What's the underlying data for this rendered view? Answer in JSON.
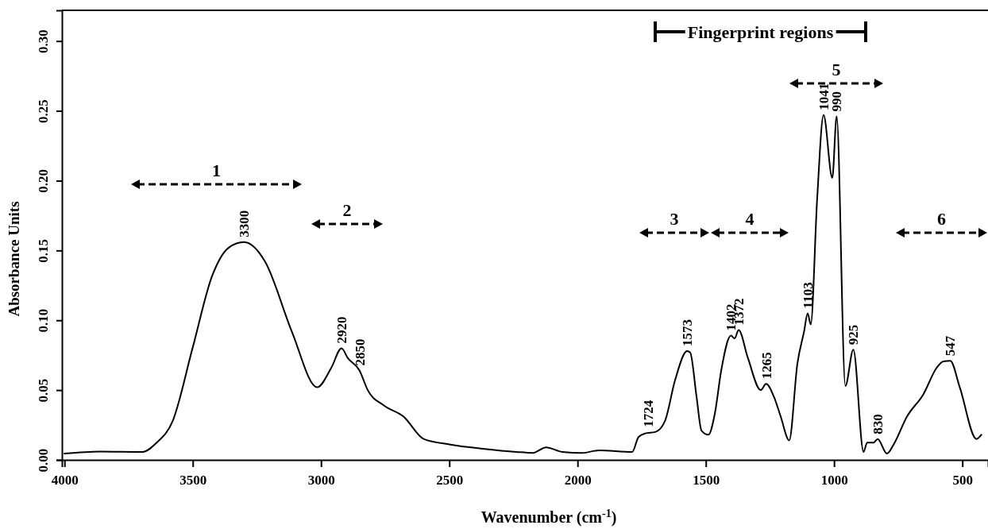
{
  "chart_data": {
    "type": "line",
    "xlabel": "Wavenumber (cm$^{-1}$)",
    "ylabel": "Absorbance Units",
    "xlim": [
      4010,
      400
    ],
    "ylim": [
      0,
      0.322
    ],
    "xticks": [
      4000,
      3500,
      3000,
      2500,
      2000,
      1500,
      1000,
      500
    ],
    "yticks": [
      {
        "value": 0,
        "label": "0.00"
      },
      {
        "value": 0.05,
        "label": "0.05"
      },
      {
        "value": 0.1,
        "label": "0.10"
      },
      {
        "value": 0.15,
        "label": "0.15"
      },
      {
        "value": 0.2,
        "label": "0.20"
      },
      {
        "value": 0.25,
        "label": "0.25"
      },
      {
        "value": 0.3,
        "label": "0.30"
      }
    ],
    "grid": false,
    "marker": "none",
    "line_style": "solid",
    "series": [
      {
        "color": "#000000",
        "x": [
          4000,
          3862,
          3695,
          3643,
          3578,
          3501,
          3424,
          3360,
          3300,
          3218,
          3114,
          3015,
          2960,
          2920,
          2896,
          2850,
          2818,
          2755,
          2678,
          2600,
          2496,
          2369,
          2239,
          2174,
          2123,
          2059,
          1982,
          1917,
          1787,
          1762,
          1736,
          1697,
          1659,
          1620,
          1573,
          1561,
          1536,
          1517,
          1490,
          1465,
          1440,
          1402,
          1388,
          1372,
          1336,
          1286,
          1265,
          1234,
          1208,
          1175,
          1143,
          1117,
          1103,
          1091,
          1066,
          1041,
          1007,
          990,
          956,
          925,
          885,
          871,
          846,
          830,
          794,
          768,
          716,
          652,
          600,
          574,
          547,
          510,
          445,
          426
        ],
        "values": [
          0.0045,
          0.006,
          0.0057,
          0.012,
          0.028,
          0.08,
          0.132,
          0.152,
          0.156,
          0.142,
          0.092,
          0.052,
          0.066,
          0.08,
          0.073,
          0.064,
          0.05,
          0.039,
          0.031,
          0.015,
          0.011,
          0.008,
          0.0057,
          0.005,
          0.009,
          0.0057,
          0.005,
          0.0068,
          0.0057,
          0.0165,
          0.019,
          0.02,
          0.028,
          0.057,
          0.078,
          0.077,
          0.045,
          0.021,
          0.018,
          0.033,
          0.064,
          0.089,
          0.087,
          0.093,
          0.073,
          0.05,
          0.0545,
          0.045,
          0.031,
          0.014,
          0.069,
          0.092,
          0.105,
          0.097,
          0.187,
          0.247,
          0.202,
          0.246,
          0.053,
          0.079,
          0.0057,
          0.0124,
          0.0124,
          0.015,
          0.0045,
          0.011,
          0.031,
          0.047,
          0.066,
          0.0705,
          0.071,
          0.052,
          0.015,
          0.018
        ]
      }
    ],
    "annotations": [
      {
        "text": "3300",
        "x": 3300,
        "y": 0.156
      },
      {
        "text": "2920",
        "x": 2920,
        "y": 0.08
      },
      {
        "text": "2850",
        "x": 2850,
        "y": 0.064
      },
      {
        "text": "1724",
        "x": 1724,
        "y": 0.02
      },
      {
        "text": "1573",
        "x": 1573,
        "y": 0.078
      },
      {
        "text": "1402",
        "x": 1402,
        "y": 0.089
      },
      {
        "text": "1372",
        "x": 1372,
        "y": 0.093
      },
      {
        "text": "1265",
        "x": 1265,
        "y": 0.0545
      },
      {
        "text": "1103",
        "x": 1103,
        "y": 0.105
      },
      {
        "text": "1041",
        "x": 1041,
        "y": 0.247
      },
      {
        "text": "990",
        "x": 990,
        "y": 0.246
      },
      {
        "text": "925",
        "x": 925,
        "y": 0.079
      },
      {
        "text": "830",
        "x": 830,
        "y": 0.015
      },
      {
        "text": "547",
        "x": 547,
        "y": 0.071
      },
      "1",
      "2",
      "3",
      "4",
      "5",
      "6",
      "Fingerprint regions"
    ]
  }
}
